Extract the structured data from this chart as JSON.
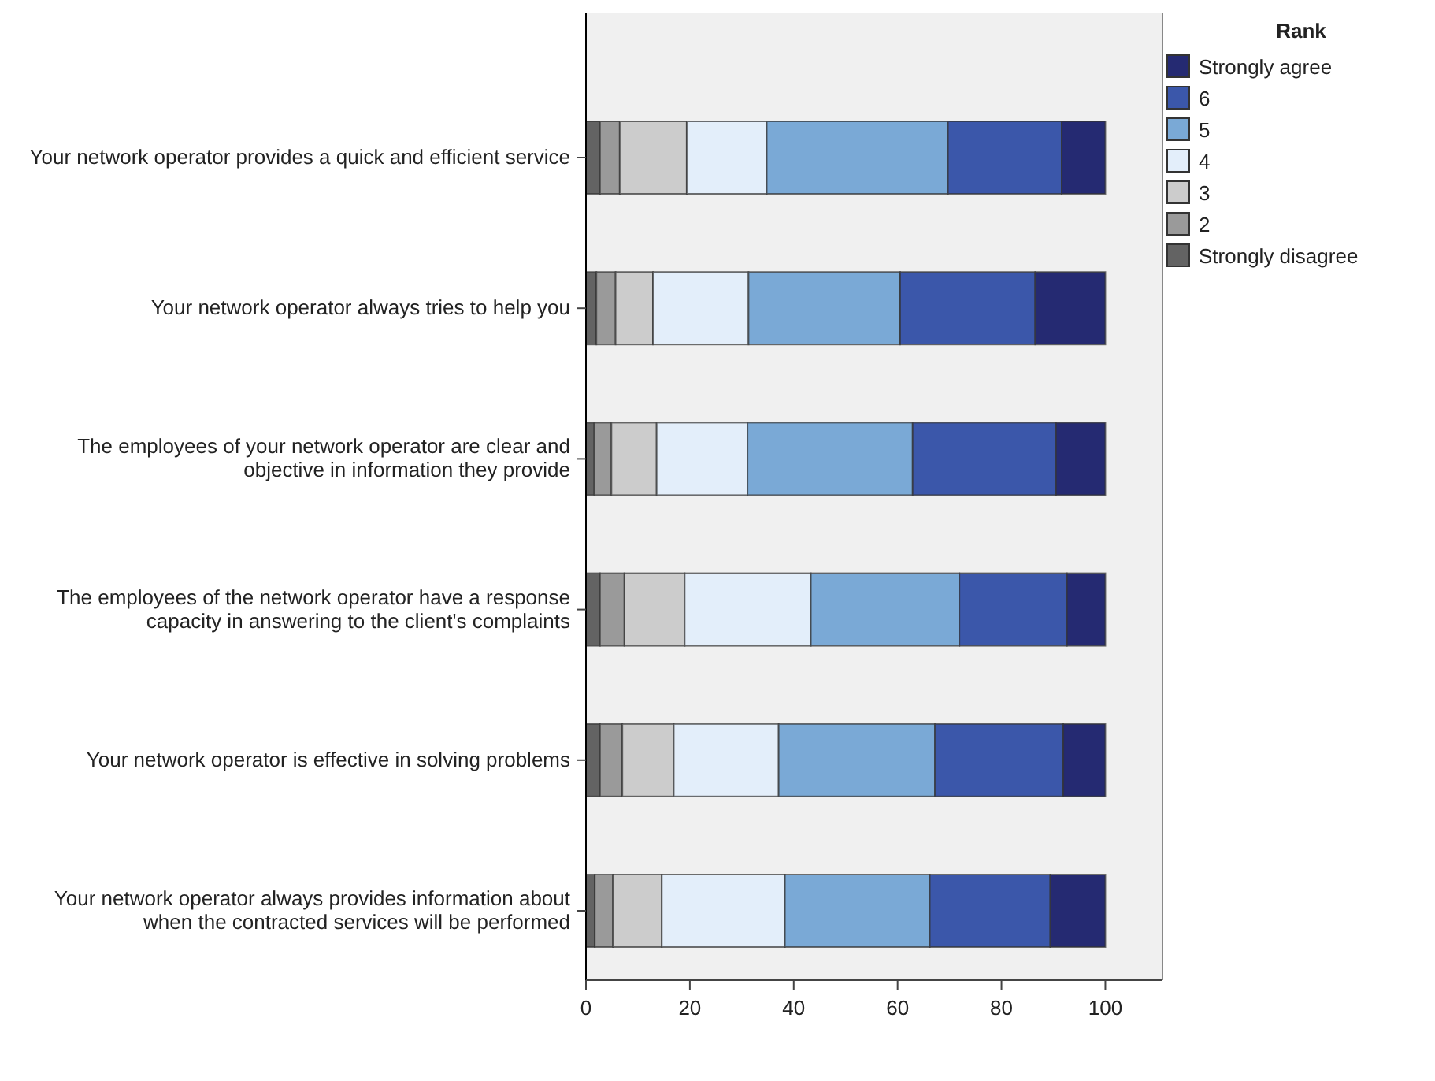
{
  "chart_data": {
    "type": "bar",
    "orientation": "horizontal",
    "stacked": true,
    "legend_title": "Rank",
    "legend": "top right",
    "categories": [
      "Your network operator provides a quick and efficient service",
      "Your network operator always tries to help you",
      "The employees of your network operator are clear and objective in information they provide",
      "The employees of the network operator have a response capacity in answering to the client's complaints",
      "Your network operator is effective in solving problems",
      "Your network operator always provides information about when the contracted services will be performed"
    ],
    "xlim": [
      0,
      111
    ],
    "xticks": [
      0,
      20,
      40,
      60,
      80,
      100
    ],
    "grid": false,
    "series": [
      {
        "name": "Strongly disagree",
        "color": "#636363",
        "values": [
          2.7,
          2.0,
          1.6,
          2.7,
          2.7,
          1.7
        ]
      },
      {
        "name": "2",
        "color": "#9a9a9a",
        "values": [
          3.8,
          3.7,
          3.3,
          4.7,
          4.3,
          3.5
        ]
      },
      {
        "name": "3",
        "color": "#cccccc",
        "values": [
          12.9,
          7.2,
          8.7,
          11.6,
          9.9,
          9.4
        ]
      },
      {
        "name": "4",
        "color": "#e3eefa",
        "values": [
          15.4,
          18.4,
          17.5,
          24.3,
          20.2,
          23.7
        ]
      },
      {
        "name": "5",
        "color": "#7aa9d6",
        "values": [
          34.9,
          29.2,
          31.8,
          28.6,
          30.1,
          27.9
        ]
      },
      {
        "name": "6",
        "color": "#3b57aa",
        "values": [
          21.9,
          26.0,
          27.6,
          20.7,
          24.7,
          23.2
        ]
      },
      {
        "name": "Strongly agree",
        "color": "#252a72",
        "values": [
          8.4,
          13.5,
          9.5,
          7.4,
          8.1,
          10.6
        ]
      }
    ]
  }
}
